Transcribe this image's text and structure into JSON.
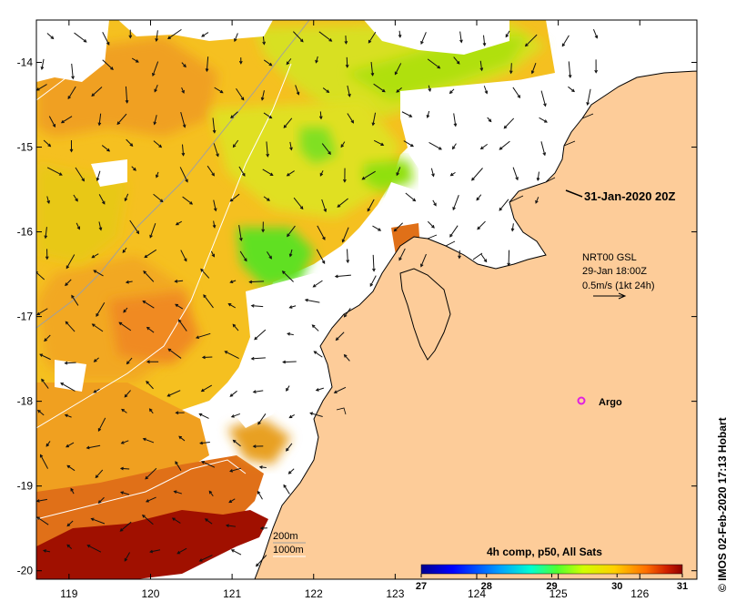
{
  "title_date": "31-Jan-2020 20Z",
  "current_info": {
    "model": "NRT00 GSL",
    "time": "29-Jan 18:00Z",
    "scale": "0.5m/s (1kt 24h)"
  },
  "argo": {
    "label": "Argo",
    "color": "#e020e0"
  },
  "credit": "© IMOS 02-Feb-2020 17:13 Hobart",
  "bathymetry_labels": [
    "200m",
    "1000m"
  ],
  "colorbar": {
    "title": "4h comp, p50, All Sats",
    "ticks": [
      "27",
      "28",
      "29",
      "30",
      "31"
    ],
    "min": 27,
    "max": 31,
    "colors": [
      "#00008f",
      "#0000ff",
      "#00a0ff",
      "#00ffd0",
      "#50ff30",
      "#d0ff00",
      "#ffd000",
      "#ff7000",
      "#d02000",
      "#8f0000"
    ]
  },
  "axes": {
    "lon_ticks": [
      "119",
      "120",
      "121",
      "122",
      "123",
      "124",
      "125",
      "126"
    ],
    "lat_ticks": [
      "-14",
      "-15",
      "-16",
      "-17",
      "-18",
      "-19",
      "-20"
    ],
    "lon_range": [
      118.6,
      126.7
    ],
    "lat_range": [
      -20.1,
      -13.5
    ]
  },
  "colors": {
    "land": "#fdcc99",
    "coast": "#000000",
    "frame": "#000000",
    "cloud": "#ffffff"
  }
}
